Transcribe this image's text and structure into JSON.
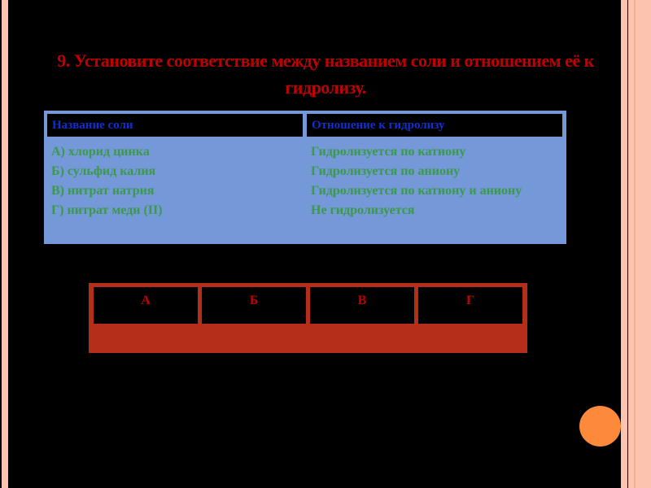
{
  "title": "9. Установите соответствие между названием соли  и отношением её к гидролизу.",
  "table": {
    "headers": [
      "Название соли",
      "Отношение к гидролизу"
    ],
    "salts": [
      "А)  хлорид цинка",
      "Б) сульфид калия",
      "В) нитрат натрия",
      "Г) нитрат меди (II)"
    ],
    "relations": [
      "Гидролизуется по катиону",
      "Гидролизуется по аниону",
      "Гидролизуется по катиону и аниону",
      "Не гидролизуется"
    ]
  },
  "answer_table": {
    "letters": [
      "А",
      "Б",
      "В",
      "Г"
    ]
  },
  "colors": {
    "title": "#c00000",
    "header_text": "#1030d0",
    "body_text": "#3a9a48",
    "table_bg": "#7498d8",
    "answer_border": "#b52e1a",
    "accent_circle": "#fd8a3a"
  }
}
